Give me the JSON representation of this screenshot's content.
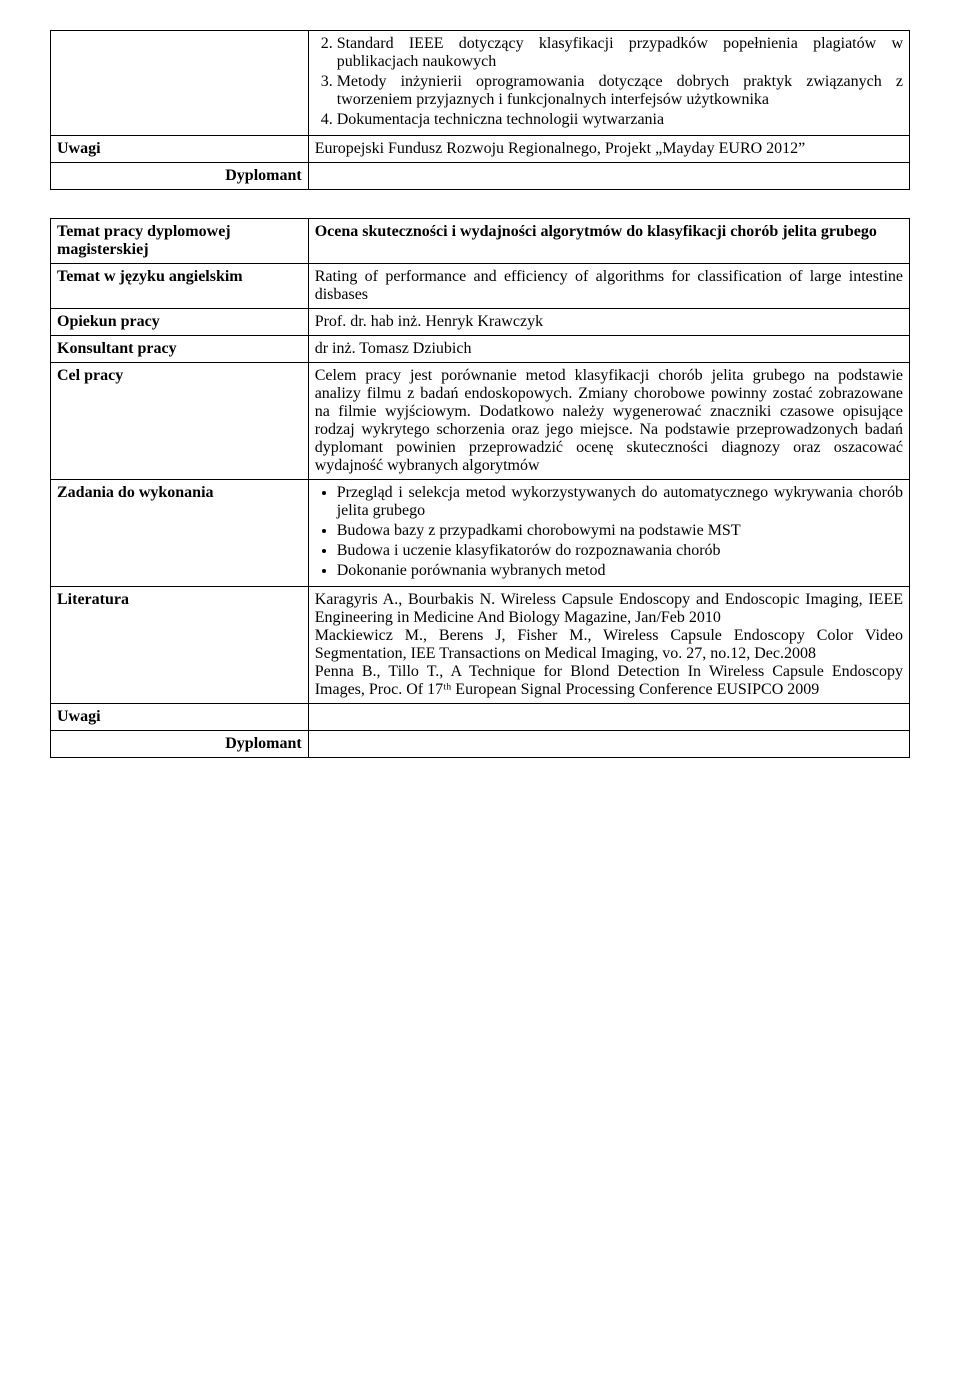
{
  "table1": {
    "labels": {
      "uwagi": "Uwagi",
      "dyplomant": "Dyplomant"
    },
    "list": {
      "i2": "Standard IEEE dotyczący klasyfikacji przypadków popełnienia plagiatów w publikacjach naukowych",
      "i3": "Metody inżynierii oprogramowania dotyczące dobrych praktyk związanych z tworzeniem przyjaznych i funkcjonalnych interfejsów użytkownika",
      "i4": "Dokumentacja techniczna technologii wytwarzania"
    },
    "uwagi_content": "Europejski Fundusz Rozwoju Regionalnego, Projekt „Mayday EURO 2012”"
  },
  "table2": {
    "labels": {
      "temat": "Temat pracy dyplomowej magisterskiej",
      "temat_en": "Temat w języku angielskim",
      "opiekun": "Opiekun pracy",
      "konsultant": "Konsultant pracy",
      "cel": "Cel pracy",
      "zadania": "Zadania do wykonania",
      "literatura": "Literatura",
      "uwagi": "Uwagi",
      "dyplomant": "Dyplomant"
    },
    "temat": "Ocena skuteczności i wydajności algorytmów do klasyfikacji chorób jelita grubego",
    "temat_en": "Rating of performance and efficiency of algorithms for classification of large intestine disbases",
    "opiekun": "Prof. dr. hab inż. Henryk Krawczyk",
    "konsultant": "dr inż. Tomasz Dziubich",
    "cel": "Celem pracy jest porównanie metod klasyfikacji chorób jelita grubego na podstawie analizy filmu z badań endoskopowych. Zmiany chorobowe powinny zostać zobrazowane na filmie wyjściowym. Dodatkowo należy wygenerować znaczniki czasowe opisujące rodzaj wykrytego schorzenia oraz jego miejsce. Na podstawie przeprowadzonych badań dyplomant powinien przeprowadzić ocenę skuteczności diagnozy oraz oszacować wydajność wybranych algorytmów",
    "zadania": {
      "z1": "Przegląd i selekcja metod wykorzystywanych do automatycznego wykrywania chorób jelita grubego",
      "z2": "Budowa bazy z przypadkami chorobowymi na podstawie MST",
      "z3": "Budowa i uczenie klasyfikatorów do rozpoznawania chorób",
      "z4": "Dokonanie porównania wybranych metod"
    },
    "literatura": {
      "l1": "Karagyris A., Bourbakis N. Wireless Capsule Endoscopy and Endoscopic Imaging, IEEE Engineering in Medicine And Biology Magazine, Jan/Feb 2010",
      "l2": "Mackiewicz M., Berens J, Fisher M., Wireless Capsule Endoscopy Color Video Segmentation, IEE Transactions on Medical Imaging, vo. 27, no.12, Dec.2008",
      "l3": "Penna B., Tillo T., A Technique for Blond Detection In Wireless Capsule Endoscopy Images, Proc. Of 17ᵗʰ European Signal Processing Conference EUSIPCO 2009"
    }
  }
}
